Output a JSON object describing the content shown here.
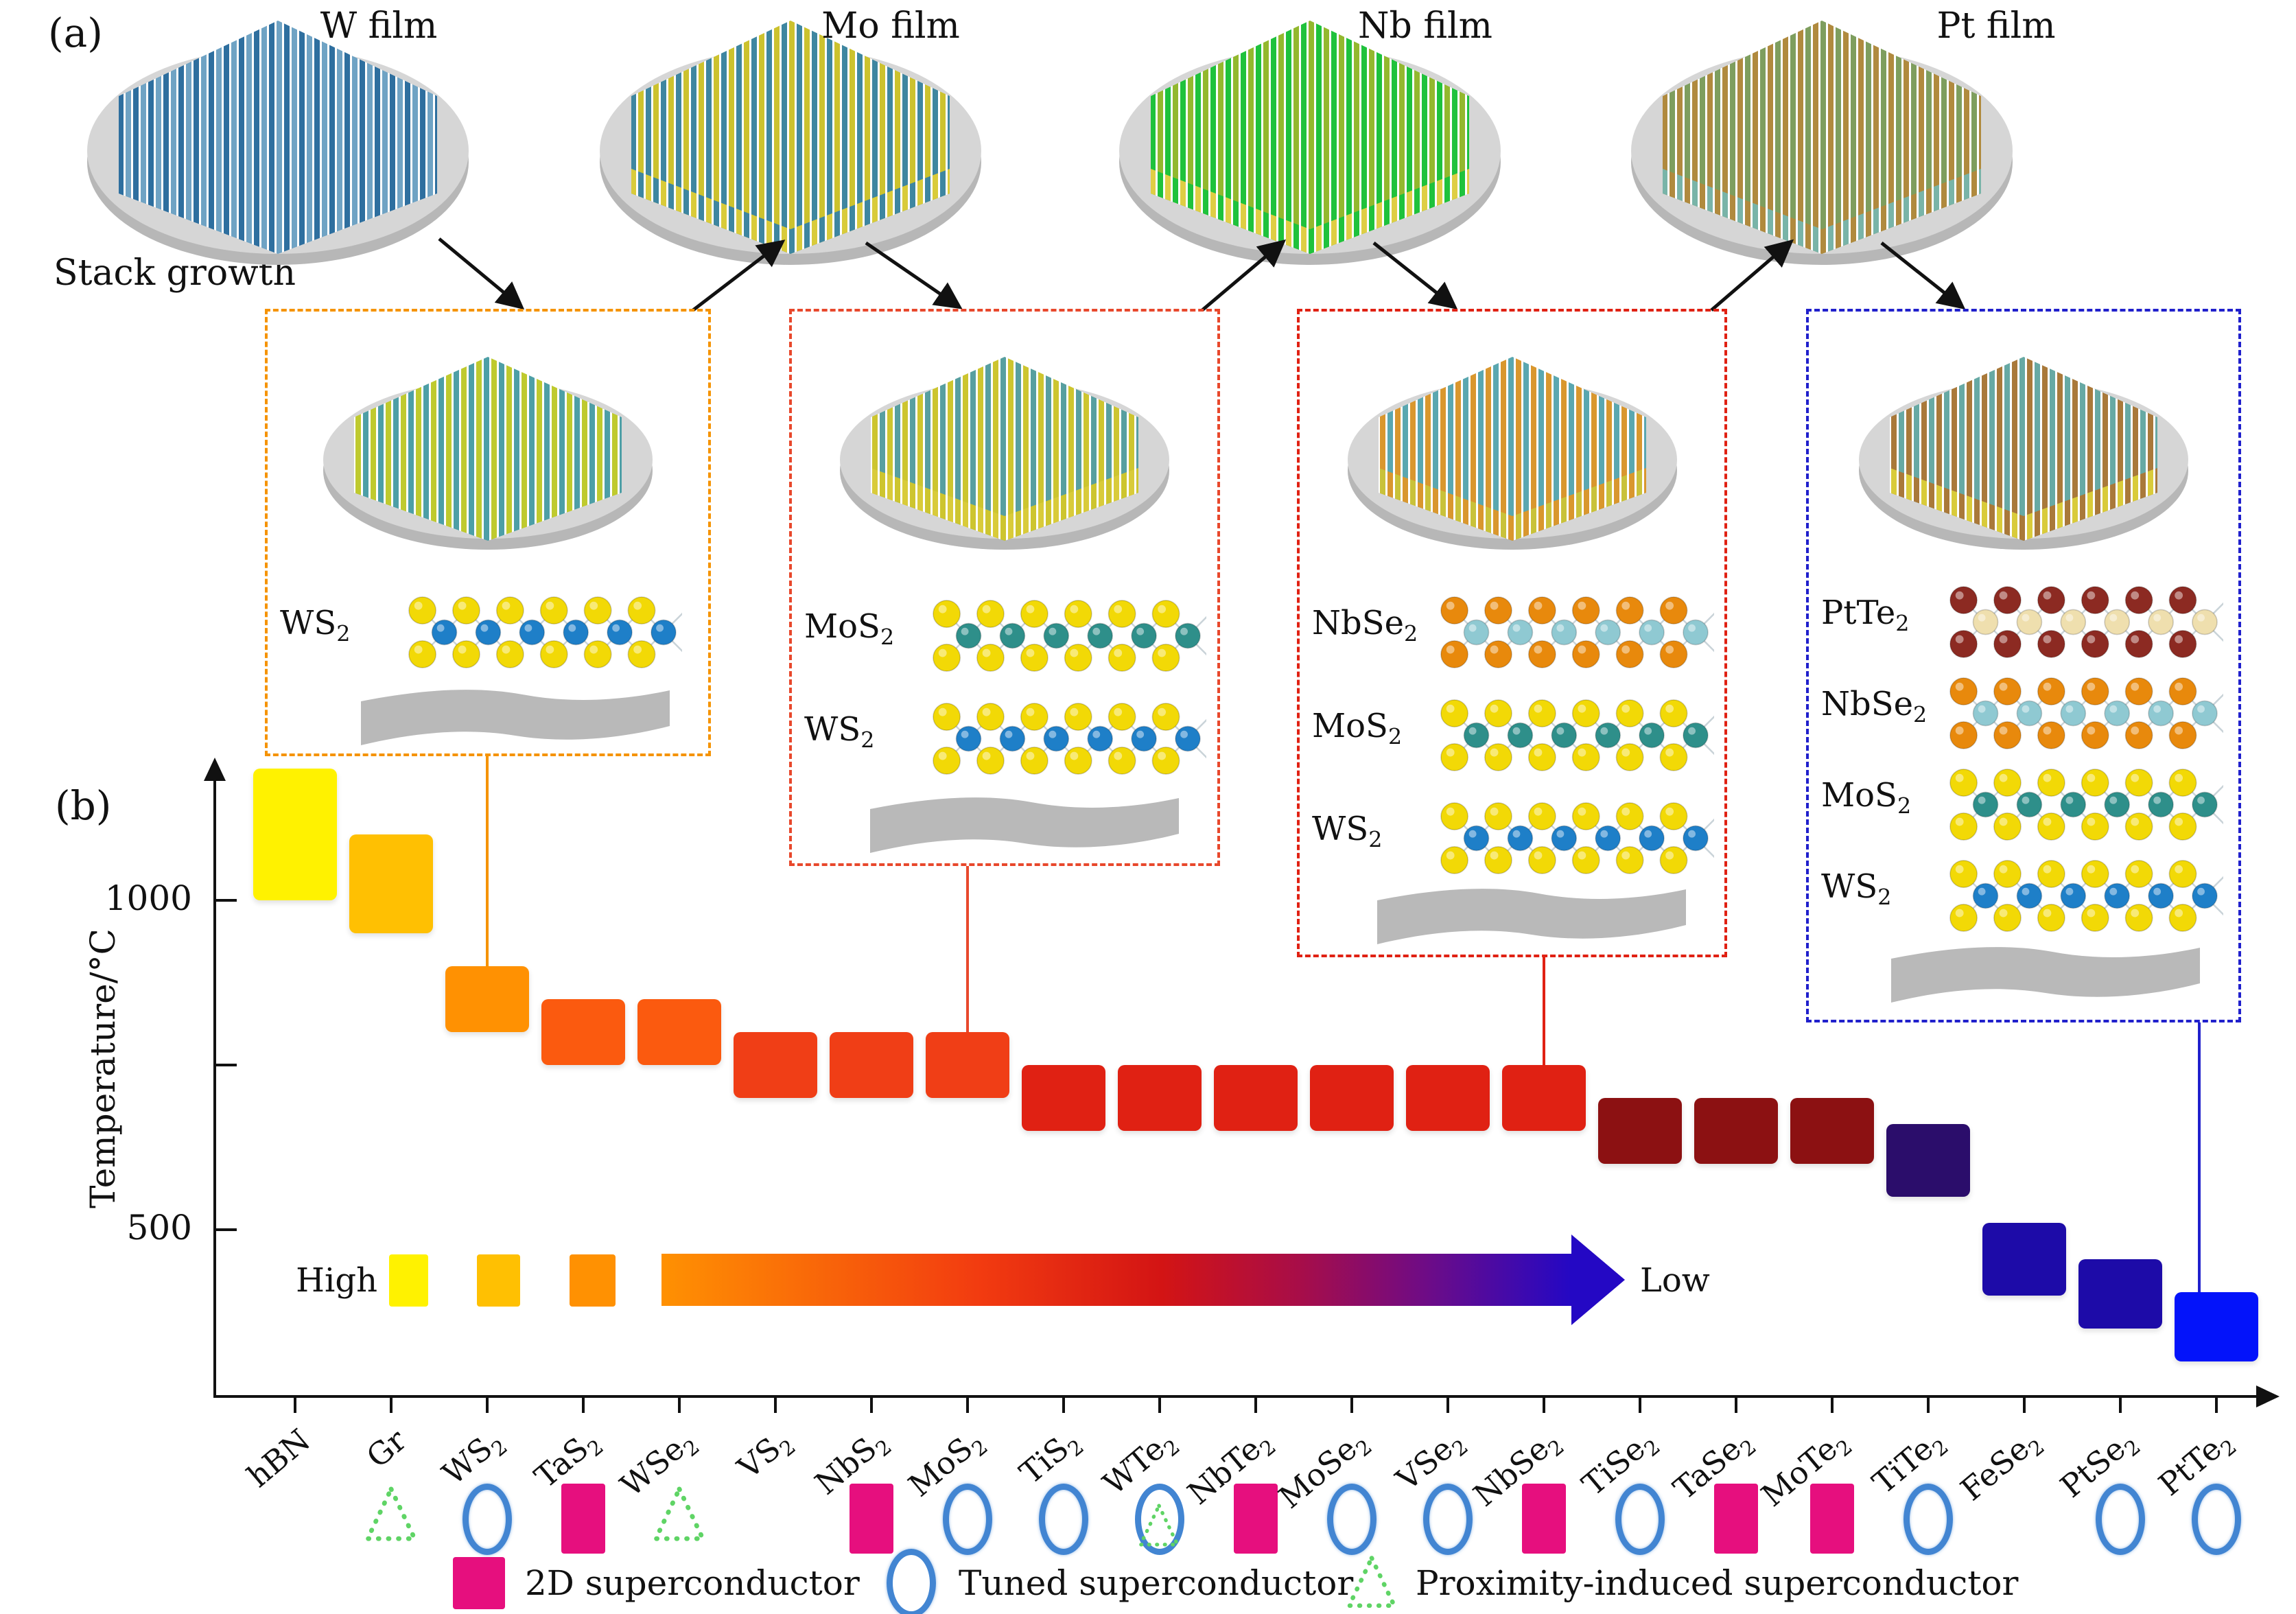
{
  "panel_a": {
    "label": "(a)",
    "stack_growth_label": "Stack growth",
    "substrate_color": "#B9B9B9",
    "films": [
      {
        "label": "W film",
        "stripe_a": "#2E6F9F",
        "stripe_b": "#6FA3C4",
        "base": null
      },
      {
        "label": "Mo film",
        "stripe_a": "#3E86A0",
        "stripe_b": "#CCC22E",
        "base": "#D9CB3A"
      },
      {
        "label": "Nb film",
        "stripe_a": "#1FC23C",
        "stripe_b": "#93B82E",
        "base": "#DFCE44"
      },
      {
        "label": "Pt film",
        "stripe_a": "#B08A3E",
        "stripe_b": "#7E9E5E",
        "base": "#79B4A8"
      }
    ],
    "boxes": [
      {
        "border_color": "#F59300",
        "connects_to": "WS2",
        "wafer": {
          "stripe_a": "#BFCA2E",
          "stripe_b": "#4D9FA6",
          "base": null
        },
        "layers": [
          {
            "label": "WS2",
            "outer": "#F2D906",
            "inner": "#1E7FC8"
          }
        ]
      },
      {
        "border_color": "#E8482C",
        "connects_to": "MoS2",
        "wafer": {
          "stripe_a": "#CDC52F",
          "stripe_b": "#579FA0",
          "base": "#D9CB3A"
        },
        "layers": [
          {
            "label": "MoS2",
            "outer": "#F2D906",
            "inner": "#2E8F8A"
          },
          {
            "label": "WS2",
            "outer": "#F2D906",
            "inner": "#1E7FC8"
          }
        ]
      },
      {
        "border_color": "#E02113",
        "connects_to": "NbSe2",
        "wafer": {
          "stripe_a": "#D9972E",
          "stripe_b": "#5AA7B0",
          "base": "#C9C23A"
        },
        "layers": [
          {
            "label": "NbSe2",
            "outer": "#E8890C",
            "inner": "#8FC9D2"
          },
          {
            "label": "MoS2",
            "outer": "#F2D906",
            "inner": "#2E8F8A"
          },
          {
            "label": "WS2",
            "outer": "#F2D906",
            "inner": "#1E7FC8"
          }
        ]
      },
      {
        "border_color": "#2020CC",
        "connects_to": "PtTe2",
        "wafer": {
          "stripe_a": "#A9793A",
          "stripe_b": "#67A9A4",
          "base": "#D9CB3A"
        },
        "layers": [
          {
            "label": "PtTe2",
            "outer": "#8C2A22",
            "inner": "#EFDFAE"
          },
          {
            "label": "NbSe2",
            "outer": "#E8890C",
            "inner": "#8FC9D2"
          },
          {
            "label": "MoS2",
            "outer": "#F2D906",
            "inner": "#2E8F8A"
          },
          {
            "label": "WS2",
            "outer": "#F2D906",
            "inner": "#1E7FC8"
          }
        ]
      }
    ]
  },
  "chart_data": {
    "type": "range-bar",
    "panel_label": "(b)",
    "title": "",
    "xlabel": "",
    "ylabel": "Temperature/°C",
    "ylim": [
      250,
      1250
    ],
    "grid": false,
    "legend_position": "bottom",
    "yticks": [
      {
        "value": 1000,
        "label": "1000"
      },
      {
        "value": 750,
        "label": ""
      },
      {
        "value": 500,
        "label": "500"
      }
    ],
    "materials": [
      {
        "name": "hBN",
        "range": [
          1000,
          1200
        ],
        "color": "#FFF200",
        "marker": "none"
      },
      {
        "name": "Gr",
        "range": [
          950,
          1100
        ],
        "color": "#FFC002",
        "marker": "triangle"
      },
      {
        "name": "WS2",
        "range": [
          800,
          900
        ],
        "color": "#FF9102",
        "marker": "circle"
      },
      {
        "name": "TaS2",
        "range": [
          750,
          850
        ],
        "color": "#FB5A0F",
        "marker": "square"
      },
      {
        "name": "WSe2",
        "range": [
          750,
          850
        ],
        "color": "#FB5A0F",
        "marker": "triangle"
      },
      {
        "name": "VS2",
        "range": [
          700,
          800
        ],
        "color": "#F03E16",
        "marker": "none"
      },
      {
        "name": "NbS2",
        "range": [
          700,
          800
        ],
        "color": "#F03E16",
        "marker": "square"
      },
      {
        "name": "MoS2",
        "range": [
          700,
          800
        ],
        "color": "#F03E16",
        "marker": "circle"
      },
      {
        "name": "TiS2",
        "range": [
          650,
          750
        ],
        "color": "#E02113",
        "marker": "circle"
      },
      {
        "name": "WTe2",
        "range": [
          650,
          750
        ],
        "color": "#E02113",
        "marker": "circle+triangle"
      },
      {
        "name": "NbTe2",
        "range": [
          650,
          750
        ],
        "color": "#E02113",
        "marker": "square"
      },
      {
        "name": "MoSe2",
        "range": [
          650,
          750
        ],
        "color": "#E02113",
        "marker": "circle"
      },
      {
        "name": "VSe2",
        "range": [
          650,
          750
        ],
        "color": "#E02113",
        "marker": "circle"
      },
      {
        "name": "NbSe2",
        "range": [
          650,
          750
        ],
        "color": "#E02113",
        "marker": "square"
      },
      {
        "name": "TiSe2",
        "range": [
          600,
          700
        ],
        "color": "#8C1112",
        "marker": "circle"
      },
      {
        "name": "TaSe2",
        "range": [
          600,
          700
        ],
        "color": "#8C1112",
        "marker": "square"
      },
      {
        "name": "MoTe2",
        "range": [
          600,
          700
        ],
        "color": "#8C1112",
        "marker": "square"
      },
      {
        "name": "TiTe2",
        "range": [
          550,
          660
        ],
        "color": "#2B0D6B",
        "marker": "circle"
      },
      {
        "name": "FeSe2",
        "range": [
          400,
          510
        ],
        "color": "#1D0BA8",
        "marker": "none"
      },
      {
        "name": "PtSe2",
        "range": [
          350,
          455
        ],
        "color": "#1D0BA8",
        "marker": "circle"
      },
      {
        "name": "PtTe2",
        "range": [
          300,
          405
        ],
        "color": "#0313FA",
        "marker": "circle"
      }
    ],
    "gradient_arrow": {
      "high_label": "High",
      "low_label": "Low",
      "swatches": [
        "#FFF200",
        "#FFC002",
        "#FF9102"
      ],
      "gradient_stops": [
        "#FF9102",
        "#F23B10",
        "#D31414",
        "#A80D48",
        "#6E0C86",
        "#2408C4"
      ]
    },
    "legend": [
      {
        "marker": "square",
        "color": "#E60F7E",
        "label": "2D superconductor"
      },
      {
        "marker": "circle",
        "color": "#4285D2",
        "label": "Tuned superconductor"
      },
      {
        "marker": "triangle",
        "color": "#5FD465",
        "label": "Proximity-induced superconductor"
      }
    ]
  }
}
